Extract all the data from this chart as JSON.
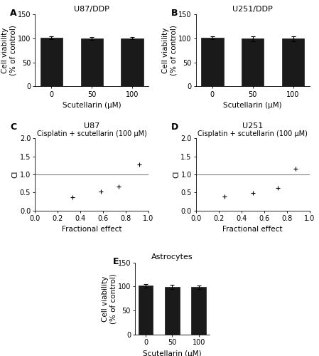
{
  "bar_A": {
    "title": "U87/DDP",
    "categories": [
      "0",
      "50",
      "100"
    ],
    "values": [
      101,
      99.5,
      100
    ],
    "errors": [
      3.5,
      3.0,
      2.5
    ],
    "ylabel": "Cell viability\n(% of control)",
    "xlabel": "Scutellarin (μM)",
    "ylim": [
      0,
      150
    ],
    "yticks": [
      0,
      50,
      100,
      150
    ],
    "bar_color": "#1a1a1a",
    "label": "A"
  },
  "bar_B": {
    "title": "U251/DDP",
    "categories": [
      "0",
      "50",
      "100"
    ],
    "values": [
      101,
      99,
      99.5
    ],
    "errors": [
      3.0,
      4.5,
      5.0
    ],
    "ylabel": "Cell viability\n(% of control)",
    "xlabel": "Scutellarin (μM)",
    "ylim": [
      0,
      150
    ],
    "yticks": [
      0,
      50,
      100,
      150
    ],
    "bar_color": "#1a1a1a",
    "label": "B"
  },
  "scatter_C": {
    "title": "U87",
    "subtitle": "Cisplatin + scutellarin (100 μM)",
    "x": [
      0.33,
      0.58,
      0.74,
      0.92
    ],
    "y": [
      0.37,
      0.53,
      0.67,
      1.27
    ],
    "hline": 1.0,
    "xlabel": "Fractional effect",
    "ylabel": "CI",
    "xlim": [
      0.0,
      1.0
    ],
    "ylim": [
      0.0,
      2.0
    ],
    "xticks": [
      0.0,
      0.2,
      0.4,
      0.6,
      0.8,
      1.0
    ],
    "yticks": [
      0.0,
      0.5,
      1.0,
      1.5,
      2.0
    ],
    "label": "C"
  },
  "scatter_D": {
    "title": "U251",
    "subtitle": "Cisplatin + scutellarin (100 μM)",
    "x": [
      0.25,
      0.5,
      0.72,
      0.88
    ],
    "y": [
      0.38,
      0.49,
      0.63,
      1.15
    ],
    "hline": 1.0,
    "xlabel": "Fractional effect",
    "ylabel": "CI",
    "xlim": [
      0.0,
      1.0
    ],
    "ylim": [
      0.0,
      2.0
    ],
    "xticks": [
      0.0,
      0.2,
      0.4,
      0.6,
      0.8,
      1.0
    ],
    "yticks": [
      0.0,
      0.5,
      1.0,
      1.5,
      2.0
    ],
    "label": "D"
  },
  "bar_E": {
    "title": "Astrocytes",
    "categories": [
      "0",
      "50",
      "100"
    ],
    "values": [
      101.5,
      99.5,
      98.5
    ],
    "errors": [
      3.5,
      4.5,
      4.0
    ],
    "ylabel": "Cell viability\n(% of control)",
    "xlabel": "Scutellarin (μM)",
    "ylim": [
      0,
      150
    ],
    "yticks": [
      0,
      50,
      100,
      150
    ],
    "bar_color": "#1a1a1a",
    "label": "E"
  },
  "background_color": "#ffffff",
  "label_fontsize": 9,
  "title_fontsize": 8,
  "subtitle_fontsize": 7,
  "axis_fontsize": 7.5,
  "tick_fontsize": 7
}
